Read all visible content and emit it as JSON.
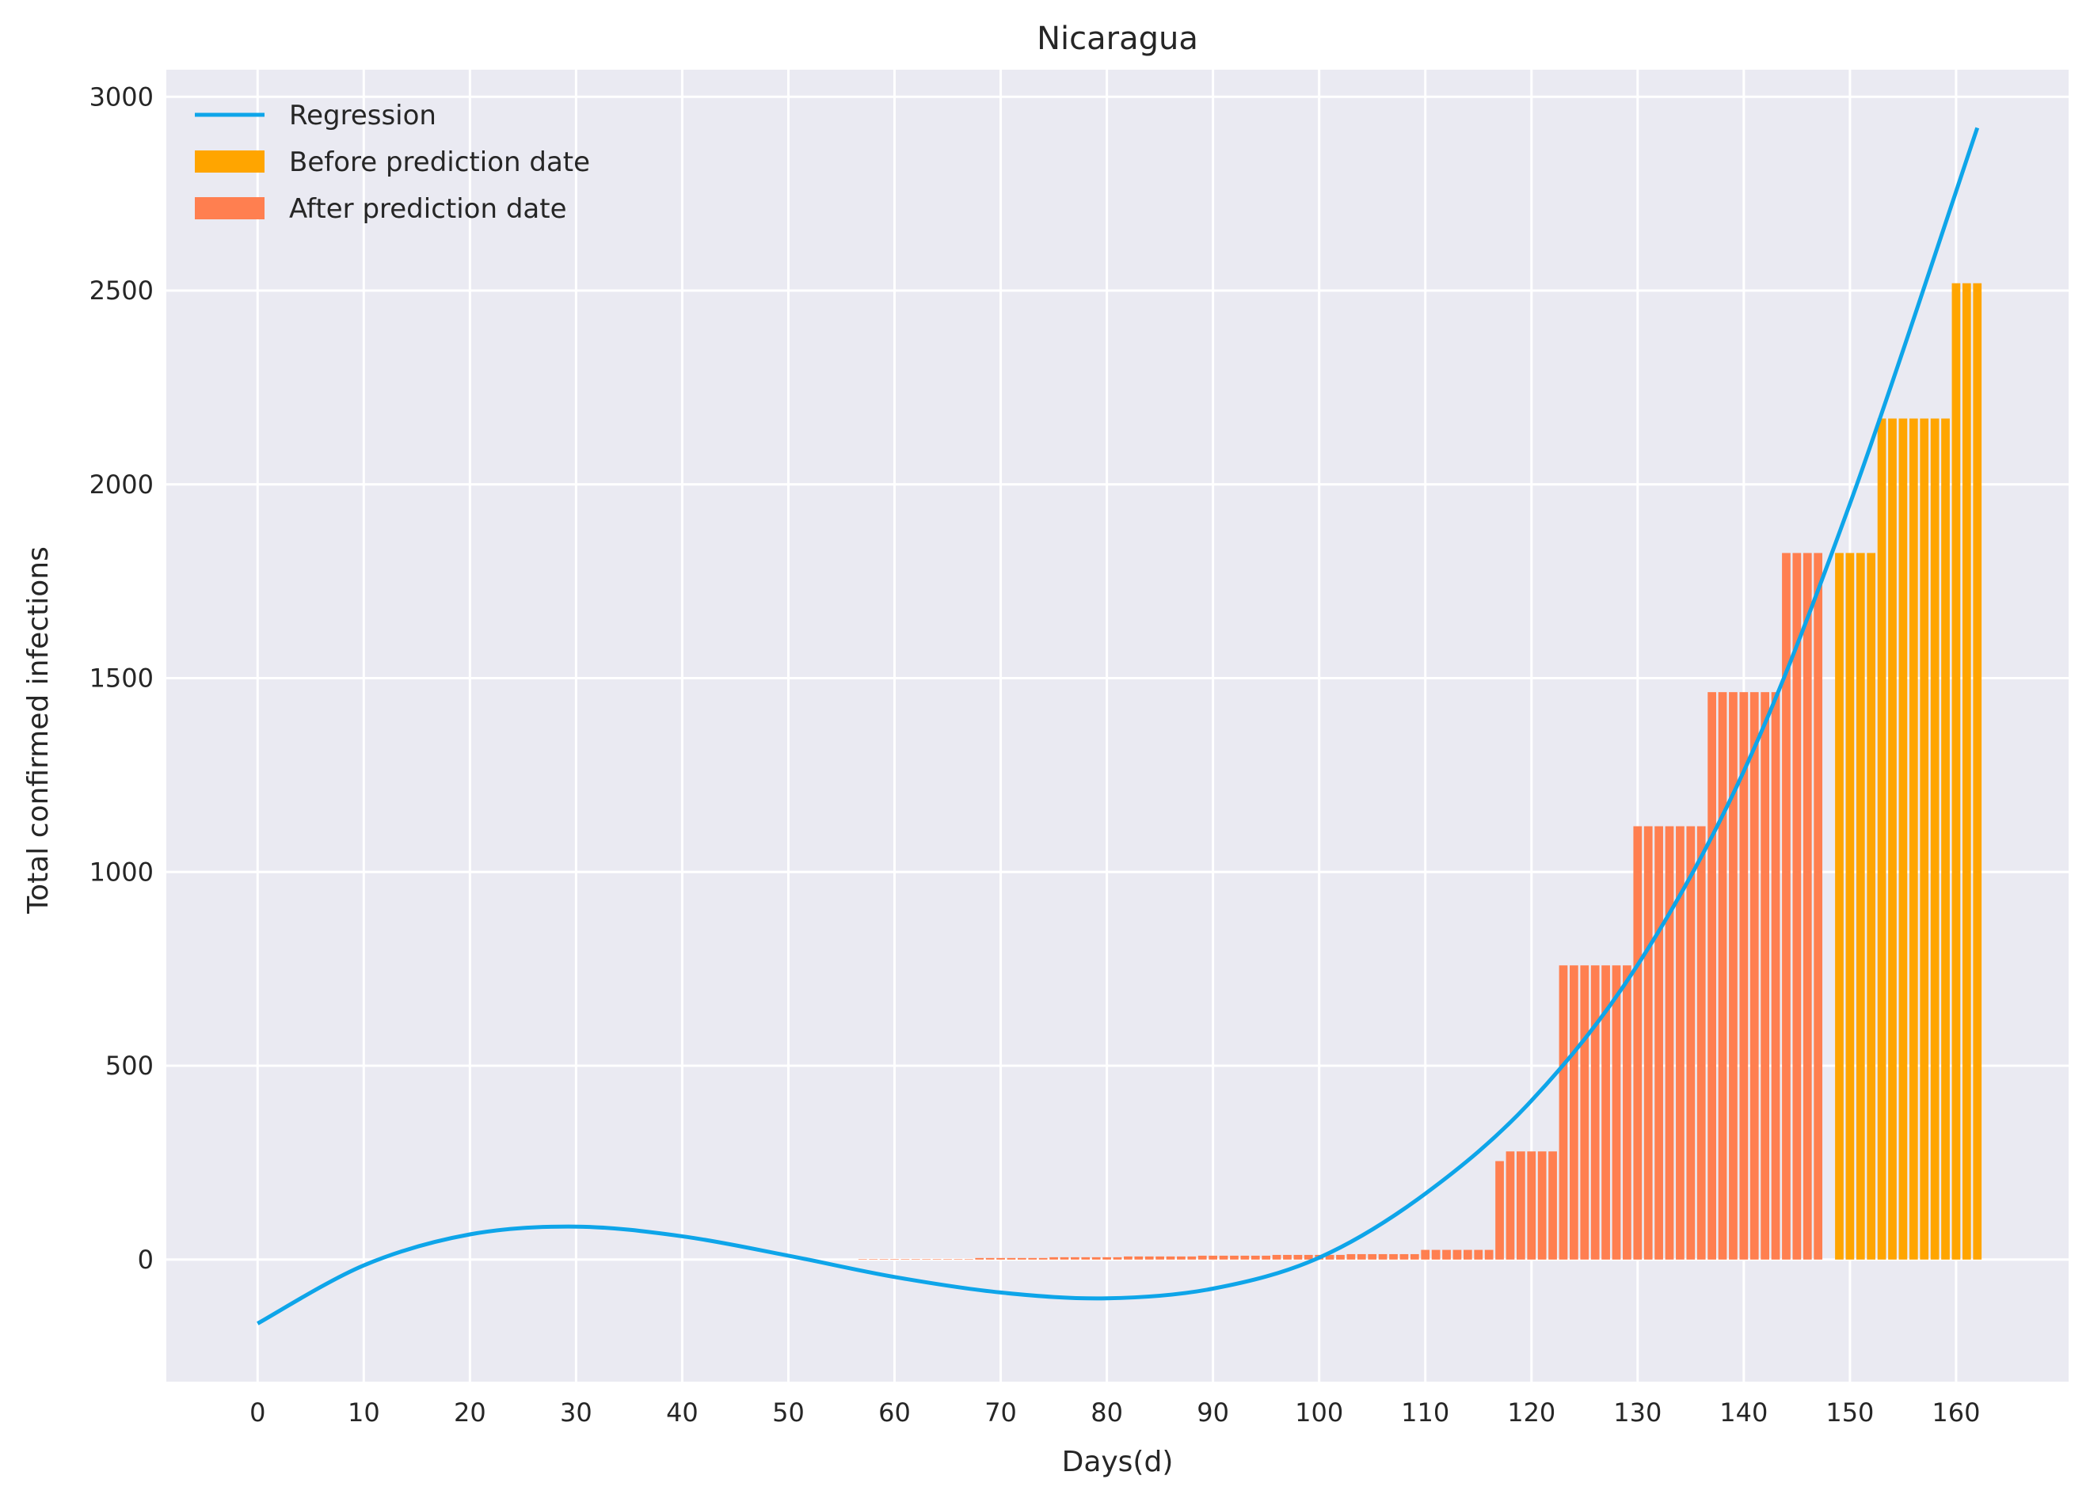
{
  "chart_data": {
    "type": "bar",
    "title": "Nicaragua",
    "xlabel": "Days(d)",
    "ylabel": "Total confirmed infections",
    "xlim": [
      -8.6,
      170.6
    ],
    "ylim": [
      -315,
      3070
    ],
    "xticks": [
      0,
      10,
      20,
      30,
      40,
      50,
      60,
      70,
      80,
      90,
      100,
      110,
      120,
      130,
      140,
      150,
      160
    ],
    "yticks": [
      0,
      500,
      1000,
      1500,
      2000,
      2500,
      3000
    ],
    "grid": true,
    "legend_position": "top-left",
    "colors": {
      "background": "#eaeaf2",
      "grid": "#ffffff",
      "regression": "#0ea5e9",
      "before": "#ffa500",
      "after": "#ff7f50"
    },
    "legend": [
      {
        "label": "Regression",
        "kind": "line",
        "color": "#0ea5e9"
      },
      {
        "label": "Before prediction date",
        "kind": "patch",
        "color": "#ffa500"
      },
      {
        "label": "After prediction date",
        "kind": "patch",
        "color": "#ff7f50"
      }
    ],
    "regression": {
      "name": "Regression",
      "x": [
        0,
        10,
        20,
        30,
        40,
        50,
        60,
        70,
        80,
        90,
        100,
        110,
        120,
        130,
        140,
        150,
        162
      ],
      "y": [
        -165,
        -15,
        65,
        85,
        60,
        10,
        -45,
        -85,
        -100,
        -75,
        5,
        170,
        410,
        760,
        1260,
        1950,
        2920
      ]
    },
    "series": [
      {
        "name": "After prediction date",
        "x_start": 57,
        "values": [
          1,
          1,
          1,
          1,
          1,
          1,
          1,
          1,
          1,
          1,
          1,
          4,
          4,
          4,
          4,
          4,
          4,
          4,
          6,
          6,
          6,
          6,
          6,
          6,
          6,
          8,
          8,
          8,
          8,
          8,
          8,
          8,
          10,
          10,
          10,
          10,
          10,
          10,
          10,
          12,
          12,
          12,
          12,
          12,
          12,
          12,
          14,
          14,
          14,
          14,
          14,
          14,
          14,
          25,
          25,
          25,
          25,
          25,
          25,
          25,
          254,
          279,
          279,
          279,
          279,
          279,
          759,
          759,
          759,
          759,
          759,
          759,
          759,
          1118,
          1118,
          1118,
          1118,
          1118,
          1118,
          1118,
          1464,
          1464,
          1464,
          1464,
          1464,
          1464,
          1464,
          1823,
          1823,
          1823,
          1823
        ]
      },
      {
        "name": "Before prediction date",
        "x_start": 149,
        "values": [
          1823,
          1823,
          1823,
          1823,
          2170,
          2170,
          2170,
          2170,
          2170,
          2170,
          2170,
          2519,
          2519,
          2519
        ]
      }
    ]
  }
}
